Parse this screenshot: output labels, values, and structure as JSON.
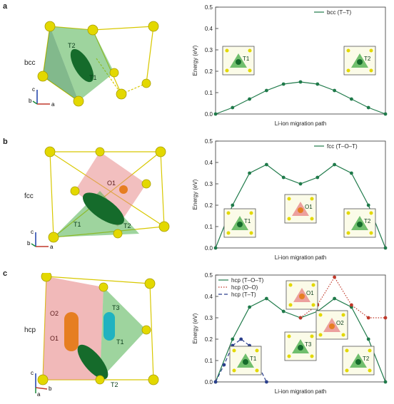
{
  "panels": [
    {
      "letter": "a",
      "structure": "bcc"
    },
    {
      "letter": "b",
      "structure": "fcc"
    },
    {
      "letter": "c",
      "structure": "hcp"
    }
  ],
  "axis_triad": {
    "a": "a",
    "b": "b",
    "c": "c"
  },
  "crystal_labels": {
    "a": [
      "T2",
      "T1"
    ],
    "b": [
      "O1",
      "T1",
      "T2"
    ],
    "c": [
      "O2",
      "T3",
      "O1",
      "T1",
      "T2"
    ]
  },
  "chart_data": [
    {
      "type": "line",
      "xlabel": "Li-ion migration path",
      "ylabel": "Energy (eV)",
      "ylim": [
        0,
        0.5
      ],
      "yticks": [
        0.0,
        0.1,
        0.2,
        0.3,
        0.4,
        0.5
      ],
      "legend_position": "top-right",
      "series": [
        {
          "name": "bcc (T–T)",
          "style": "solid",
          "color": "#1f7a4a",
          "x": [
            0,
            0.1,
            0.2,
            0.3,
            0.4,
            0.5,
            0.6,
            0.7,
            0.8,
            0.9,
            1.0
          ],
          "y": [
            0.0,
            0.03,
            0.07,
            0.11,
            0.14,
            0.15,
            0.14,
            0.11,
            0.07,
            0.03,
            0.0
          ]
        }
      ],
      "insets": [
        "T1",
        "T2"
      ]
    },
    {
      "type": "line",
      "xlabel": "Li-ion migration path",
      "ylabel": "Energy (eV)",
      "ylim": [
        0,
        0.5
      ],
      "yticks": [
        0.0,
        0.1,
        0.2,
        0.3,
        0.4,
        0.5
      ],
      "legend_position": "top-right",
      "series": [
        {
          "name": "fcc (T–O–T)",
          "style": "solid",
          "color": "#1f7a4a",
          "x": [
            0,
            0.1,
            0.2,
            0.3,
            0.4,
            0.5,
            0.6,
            0.7,
            0.8,
            0.9,
            1.0
          ],
          "y": [
            0.0,
            0.2,
            0.35,
            0.39,
            0.33,
            0.3,
            0.33,
            0.39,
            0.35,
            0.2,
            0.0
          ]
        }
      ],
      "insets": [
        "T1",
        "O1",
        "T2"
      ]
    },
    {
      "type": "line",
      "xlabel": "Li-ion migration path",
      "ylabel": "Energy (eV)",
      "ylim": [
        0,
        0.5
      ],
      "yticks": [
        0.0,
        0.1,
        0.2,
        0.3,
        0.4,
        0.5
      ],
      "legend_position": "top-left",
      "series": [
        {
          "name": "hcp (T–O–T)",
          "style": "solid",
          "color": "#1f7a4a",
          "x": [
            0,
            0.1,
            0.2,
            0.3,
            0.4,
            0.5,
            0.6,
            0.7,
            0.8,
            0.9,
            1.0
          ],
          "y": [
            0.0,
            0.2,
            0.35,
            0.39,
            0.33,
            0.3,
            0.33,
            0.39,
            0.35,
            0.2,
            0.0
          ]
        },
        {
          "name": "hcp (O–O)",
          "style": "dotted",
          "color": "#c0392b",
          "x": [
            0.5,
            0.6,
            0.7,
            0.8,
            0.9,
            1.0
          ],
          "y": [
            0.3,
            0.36,
            0.49,
            0.36,
            0.3,
            0.3
          ]
        },
        {
          "name": "hcp (T–T)",
          "style": "dashed",
          "color": "#2b3f8c",
          "x": [
            0,
            0.05,
            0.1,
            0.15,
            0.2,
            0.25,
            0.3
          ],
          "y": [
            0.0,
            0.08,
            0.17,
            0.2,
            0.17,
            0.08,
            0.0
          ]
        }
      ],
      "insets": [
        "O1",
        "O2",
        "T3",
        "T1",
        "T2"
      ]
    }
  ]
}
